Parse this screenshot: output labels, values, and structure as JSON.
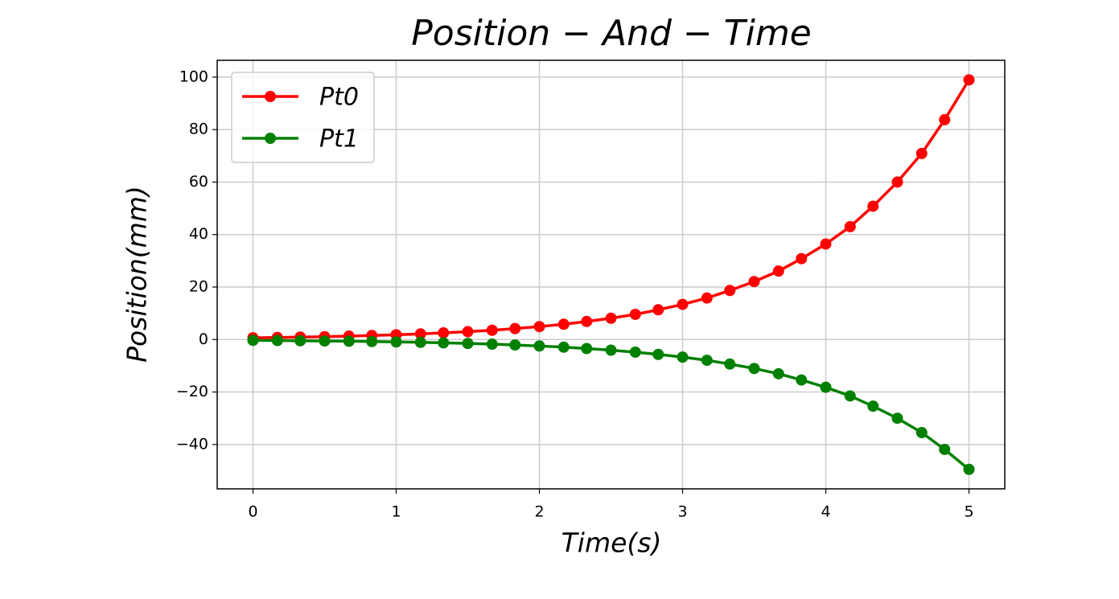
{
  "chart_data": {
    "type": "line",
    "title": "Position − And − Time",
    "xlabel": "Time(s)",
    "ylabel": "Position(mm)",
    "x": [
      0,
      0.17,
      0.33,
      0.5,
      0.67,
      0.83,
      1,
      1.17,
      1.33,
      1.5,
      1.67,
      1.83,
      2,
      2.17,
      2.33,
      2.5,
      2.67,
      2.83,
      3,
      3.17,
      3.33,
      3.5,
      3.67,
      3.83,
      4,
      4.17,
      4.33,
      4.5,
      4.67,
      4.83,
      5
    ],
    "series": [
      {
        "name": "Pt0",
        "color": "#ff0000",
        "values": [
          0.67,
          0.79,
          0.93,
          1.1,
          1.3,
          1.53,
          1.81,
          2.14,
          2.53,
          2.99,
          3.53,
          4.17,
          4.93,
          5.82,
          6.87,
          8.12,
          9.59,
          11.33,
          13.39,
          15.82,
          18.69,
          22.08,
          26.08,
          30.81,
          36.4,
          43.0,
          50.8,
          60.01,
          70.9,
          83.75,
          98.94
        ]
      },
      {
        "name": "Pt1",
        "color": "#008000",
        "values": [
          -0.33,
          -0.39,
          -0.47,
          -0.55,
          -0.65,
          -0.77,
          -0.91,
          -1.07,
          -1.26,
          -1.49,
          -1.76,
          -2.08,
          -2.46,
          -2.91,
          -3.44,
          -4.06,
          -4.8,
          -5.67,
          -6.7,
          -7.91,
          -9.34,
          -11.04,
          -13.04,
          -15.41,
          -18.2,
          -21.5,
          -25.4,
          -30.01,
          -35.45,
          -41.88,
          -49.47
        ]
      }
    ],
    "xlim": [
      -0.25,
      5.25
    ],
    "xticks": [
      0,
      1,
      2,
      3,
      4,
      5
    ],
    "ylim": [
      -56.9,
      106.4
    ],
    "yticks": [
      {
        "value": -40,
        "label": "−40"
      },
      {
        "value": -20,
        "label": "−20"
      },
      0,
      20,
      40,
      60,
      80,
      100
    ],
    "grid": true,
    "legend": "upper left"
  }
}
